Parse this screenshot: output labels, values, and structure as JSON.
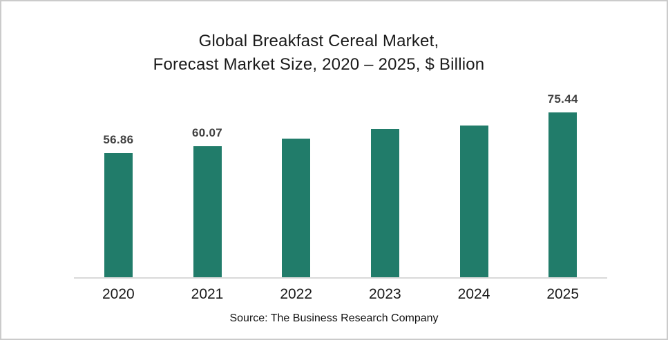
{
  "title": {
    "line1": "Global Breakfast Cereal Market,",
    "line2": "Forecast Market Size, 2020 – 2025, $ Billion"
  },
  "source": "Source: The Business Research Company",
  "colors": {
    "bar": "#217C6A",
    "axis_line": "#D9D9D9",
    "data_label": "#404040",
    "title_text": "#1A1A1A",
    "frame_border": "#CBCBCB"
  },
  "chart_data": {
    "type": "bar",
    "title": "Global Breakfast Cereal Market, Forecast Market Size, 2020 – 2025, $ Billion",
    "categories": [
      "2020",
      "2021",
      "2022",
      "2023",
      "2024",
      "2025"
    ],
    "values": [
      56.86,
      60.07,
      63.5,
      68.0,
      69.6,
      75.44
    ],
    "data_labels": [
      "56.86",
      "60.07",
      "",
      "",
      "",
      "75.44"
    ],
    "unit": "$ Billion",
    "xlabel": "",
    "ylabel": "",
    "ylim": [
      0,
      85
    ],
    "grid": false,
    "legend": false,
    "caption": "Source: The Business Research Company"
  }
}
